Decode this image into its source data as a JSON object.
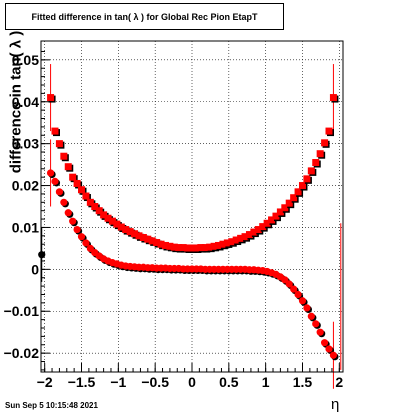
{
  "chart_data": {
    "type": "scatter",
    "title": "Fitted difference in tan( λ ) for Global Rec Pion EtapT",
    "xlabel": "η",
    "ylabel": "difference in tan( λ )",
    "xlim": [
      -2.05,
      2.05
    ],
    "ylim": [
      -0.0245,
      0.0545
    ],
    "x_ticks": [
      -2,
      -1.5,
      -1,
      -0.5,
      0,
      0.5,
      1,
      1.5,
      2
    ],
    "x_tick_labels": [
      "−2",
      "−1.5",
      "−1",
      "−0.5",
      "0",
      "0.5",
      "1",
      "1.5",
      "2"
    ],
    "y_ticks": [
      -0.02,
      -0.01,
      0,
      0.01,
      0.02,
      0.03,
      0.04,
      0.05
    ],
    "y_tick_labels": [
      "−0.02",
      "−0.01",
      "0",
      "0.01",
      "0.02",
      "0.03",
      "0.04",
      "0.05"
    ],
    "grid": true,
    "series": [
      {
        "marker": "square",
        "colors": [
          "#000000",
          "#ff0000"
        ],
        "x": [
          -1.92,
          -1.86,
          -1.8,
          -1.74,
          -1.68,
          -1.62,
          -1.56,
          -1.5,
          -1.44,
          -1.38,
          -1.32,
          -1.26,
          -1.2,
          -1.14,
          -1.08,
          -1.02,
          -0.96,
          -0.9,
          -0.84,
          -0.78,
          -0.72,
          -0.66,
          -0.6,
          -0.54,
          -0.48,
          -0.42,
          -0.36,
          -0.3,
          -0.24,
          -0.18,
          -0.12,
          -0.06,
          0,
          0.06,
          0.12,
          0.18,
          0.24,
          0.3,
          0.36,
          0.42,
          0.48,
          0.54,
          0.6,
          0.66,
          0.72,
          0.78,
          0.84,
          0.9,
          0.96,
          1.02,
          1.08,
          1.14,
          1.2,
          1.26,
          1.32,
          1.38,
          1.44,
          1.5,
          1.56,
          1.62,
          1.68,
          1.74,
          1.8,
          1.86,
          1.92
        ],
        "y": [
          0.041,
          0.033,
          0.03,
          0.027,
          0.0245,
          0.022,
          0.0205,
          0.019,
          0.0175,
          0.016,
          0.015,
          0.014,
          0.013,
          0.0122,
          0.0115,
          0.0108,
          0.0101,
          0.0095,
          0.009,
          0.0085,
          0.008,
          0.0076,
          0.0072,
          0.0068,
          0.0064,
          0.006,
          0.0057,
          0.0055,
          0.0053,
          0.0052,
          0.0052,
          0.0051,
          0.0051,
          0.0051,
          0.0052,
          0.0052,
          0.0053,
          0.0055,
          0.0057,
          0.006,
          0.0063,
          0.0066,
          0.007,
          0.0074,
          0.0078,
          0.0083,
          0.0089,
          0.0095,
          0.0102,
          0.011,
          0.0118,
          0.0127,
          0.0137,
          0.0147,
          0.0158,
          0.0171,
          0.0185,
          0.02,
          0.0216,
          0.0235,
          0.0255,
          0.0276,
          0.0302,
          0.033,
          0.041
        ]
      },
      {
        "marker": "circle",
        "colors": [
          "#000000",
          "#ff0000"
        ],
        "x": [
          -1.92,
          -1.86,
          -1.8,
          -1.74,
          -1.68,
          -1.62,
          -1.56,
          -1.5,
          -1.44,
          -1.38,
          -1.32,
          -1.26,
          -1.2,
          -1.14,
          -1.08,
          -1.02,
          -0.96,
          -0.9,
          -0.84,
          -0.78,
          -0.72,
          -0.66,
          -0.6,
          -0.54,
          -0.48,
          -0.42,
          -0.36,
          -0.3,
          -0.24,
          -0.18,
          -0.12,
          -0.06,
          0,
          0.06,
          0.12,
          0.18,
          0.24,
          0.3,
          0.36,
          0.42,
          0.48,
          0.54,
          0.6,
          0.66,
          0.72,
          0.78,
          0.84,
          0.9,
          0.96,
          1.02,
          1.08,
          1.14,
          1.2,
          1.26,
          1.32,
          1.38,
          1.44,
          1.5,
          1.56,
          1.62,
          1.68,
          1.74,
          1.8,
          1.86,
          1.92
        ],
        "y": [
          0.023,
          0.021,
          0.0185,
          0.016,
          0.0135,
          0.0115,
          0.0095,
          0.0078,
          0.0063,
          0.005,
          0.004,
          0.0032,
          0.0025,
          0.002,
          0.0016,
          0.0013,
          0.001,
          0.0008,
          0.0007,
          0.0006,
          0.0005,
          0.0005,
          0.0004,
          0.0004,
          0.0003,
          0.0003,
          0.0003,
          0.0002,
          0.0002,
          0.0002,
          0.0001,
          0.0001,
          0.0001,
          0.0001,
          0.0001,
          0,
          0,
          0,
          0,
          0,
          0,
          0,
          0,
          0,
          0,
          -0.0001,
          -0.0001,
          -0.0002,
          -0.0003,
          -0.0005,
          -0.0008,
          -0.0012,
          -0.0018,
          -0.0025,
          -0.0035,
          -0.0047,
          -0.006,
          -0.0075,
          -0.0092,
          -0.0112,
          -0.013,
          -0.015,
          -0.0175,
          -0.019,
          -0.0205
        ]
      }
    ]
  },
  "footer": {
    "timestamp": "Sun Sep  5 10:15:48 2021"
  }
}
